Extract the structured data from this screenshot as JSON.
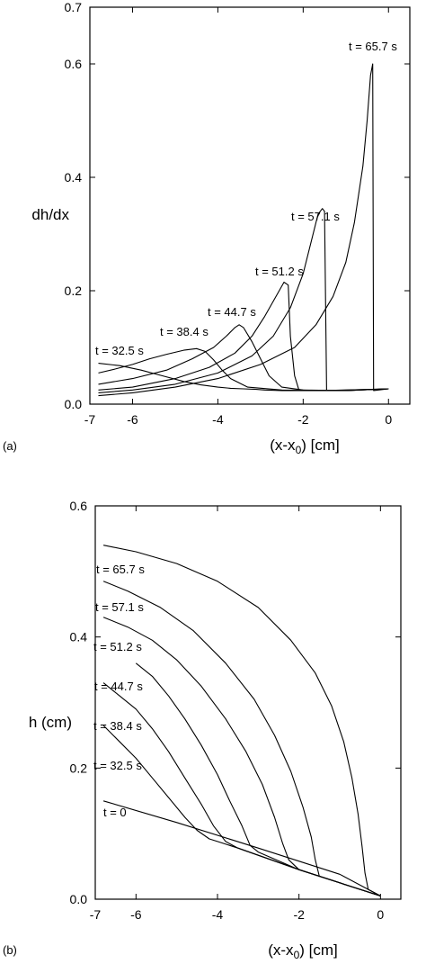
{
  "chart_data": [
    {
      "type": "line",
      "panel_label": "(a)",
      "xlabel": "(x-x",
      "xlabel_sub": "0",
      "xlabel_suffix": ") [cm]",
      "ylabel": "dh/dx",
      "xlim": [
        -7,
        0.5
      ],
      "ylim": [
        0,
        0.7
      ],
      "xticks": [
        -7,
        -6,
        -4,
        -2,
        0
      ],
      "xtick_labels": [
        "-7",
        "-6",
        "-4",
        "-2",
        "0"
      ],
      "yticks": [
        0.0,
        0.2,
        0.4,
        0.6,
        0.7
      ],
      "ytick_labels": [
        "0.0",
        "0.2",
        "0.4",
        "0.6",
        "0.7"
      ],
      "grid": false,
      "series": [
        {
          "label": "t = 32.5 s",
          "x": [
            -6.8,
            -6.3,
            -5.8,
            -5.3,
            -4.8,
            -4.4,
            -4.0,
            -3.7,
            -3.4,
            -3.1,
            -2.9,
            -2.5,
            -2.0,
            -1.0,
            0.0
          ],
          "y": [
            0.072,
            0.068,
            0.06,
            0.05,
            0.04,
            0.034,
            0.03,
            0.028,
            0.027,
            0.026,
            0.025,
            0.024,
            0.024,
            0.024,
            0.027
          ]
        },
        {
          "label": "t = 38.4 s",
          "x": [
            -6.8,
            -6.4,
            -6.0,
            -5.6,
            -5.2,
            -4.8,
            -4.5,
            -4.3,
            -4.1,
            -3.9,
            -3.7,
            -3.3,
            -2.5,
            -1.0,
            0.0
          ],
          "y": [
            0.055,
            0.062,
            0.07,
            0.08,
            0.088,
            0.095,
            0.098,
            0.093,
            0.078,
            0.06,
            0.045,
            0.03,
            0.025,
            0.024,
            0.027
          ]
        },
        {
          "label": "t = 44.7 s",
          "x": [
            -6.8,
            -6.0,
            -5.2,
            -4.6,
            -4.1,
            -3.8,
            -3.6,
            -3.5,
            -3.4,
            -3.2,
            -3.0,
            -2.8,
            -2.5,
            -2.0,
            -1.0,
            0.0
          ],
          "y": [
            0.035,
            0.045,
            0.06,
            0.08,
            0.1,
            0.12,
            0.135,
            0.14,
            0.135,
            0.11,
            0.08,
            0.05,
            0.03,
            0.025,
            0.024,
            0.027
          ]
        },
        {
          "label": "t = 51.2 s",
          "x": [
            -6.8,
            -6.0,
            -5.0,
            -4.2,
            -3.6,
            -3.2,
            -2.9,
            -2.6,
            -2.45,
            -2.35,
            -2.3,
            -2.2,
            -2.1,
            -1.5,
            0.0
          ],
          "y": [
            0.025,
            0.03,
            0.045,
            0.065,
            0.09,
            0.12,
            0.155,
            0.195,
            0.215,
            0.21,
            0.12,
            0.05,
            0.025,
            0.024,
            0.027
          ]
        },
        {
          "label": "t = 57.1 s",
          "x": [
            -6.8,
            -6.0,
            -5.0,
            -4.0,
            -3.2,
            -2.7,
            -2.3,
            -2.0,
            -1.8,
            -1.65,
            -1.55,
            -1.5,
            -1.45,
            0.0
          ],
          "y": [
            0.02,
            0.025,
            0.035,
            0.055,
            0.085,
            0.12,
            0.17,
            0.23,
            0.29,
            0.335,
            0.345,
            0.34,
            0.024,
            0.027
          ]
        },
        {
          "label": "t = 65.7 s",
          "x": [
            -6.8,
            -6.0,
            -5.0,
            -4.0,
            -3.0,
            -2.2,
            -1.7,
            -1.3,
            -1.0,
            -0.8,
            -0.6,
            -0.5,
            -0.42,
            -0.37,
            -0.35,
            0.0
          ],
          "y": [
            0.015,
            0.02,
            0.03,
            0.045,
            0.07,
            0.1,
            0.14,
            0.19,
            0.25,
            0.32,
            0.42,
            0.5,
            0.58,
            0.6,
            0.024,
            0.027
          ]
        }
      ]
    },
    {
      "type": "line",
      "panel_label": "(b)",
      "xlabel": "(x-x",
      "xlabel_sub": "0",
      "xlabel_suffix": ") [cm]",
      "ylabel": "h (cm)",
      "xlim": [
        -7,
        0.5
      ],
      "ylim": [
        0,
        0.6
      ],
      "xticks": [
        -7,
        -6,
        -4,
        -2,
        0
      ],
      "xtick_labels": [
        "-7",
        "-6",
        "-4",
        "-2",
        "0"
      ],
      "yticks": [
        0.0,
        0.2,
        0.4,
        0.6
      ],
      "ytick_labels": [
        "0.0",
        "0.2",
        "0.4",
        "0.6"
      ],
      "grid": false,
      "series": [
        {
          "label": "t = 0",
          "x": [
            -6.8,
            -5.0,
            -3.0,
            -1.0,
            0.0
          ],
          "y": [
            0.15,
            0.117,
            0.078,
            0.038,
            0.005
          ]
        },
        {
          "label": "t = 32.5 s",
          "x": [
            -6.8,
            -6.4,
            -6.0,
            -5.6,
            -5.2,
            -4.8,
            -4.5,
            -4.2,
            -4.0,
            -3.5,
            -2.0,
            0.0
          ],
          "y": [
            0.265,
            0.24,
            0.215,
            0.185,
            0.155,
            0.125,
            0.105,
            0.092,
            0.088,
            0.078,
            0.045,
            0.005
          ]
        },
        {
          "label": "t = 38.4 s",
          "x": [
            -6.8,
            -6.4,
            -6.0,
            -5.6,
            -5.2,
            -4.8,
            -4.4,
            -4.1,
            -3.8,
            -3.5,
            -2.0,
            0.0
          ],
          "y": [
            0.33,
            0.31,
            0.29,
            0.26,
            0.225,
            0.185,
            0.145,
            0.112,
            0.088,
            0.078,
            0.045,
            0.005
          ]
        },
        {
          "label": "t = 44.7 s",
          "x": [
            -6.0,
            -5.6,
            -5.2,
            -4.8,
            -4.4,
            -4.0,
            -3.7,
            -3.4,
            -3.2,
            -3.0,
            -2.0,
            0.0
          ],
          "y": [
            0.36,
            0.34,
            0.31,
            0.275,
            0.235,
            0.19,
            0.15,
            0.112,
            0.082,
            0.072,
            0.045,
            0.005
          ]
        },
        {
          "label": "t = 51.2 s",
          "x": [
            -6.8,
            -6.2,
            -5.6,
            -5.0,
            -4.4,
            -3.8,
            -3.3,
            -2.9,
            -2.6,
            -2.4,
            -2.25,
            -2.0,
            0.0
          ],
          "y": [
            0.43,
            0.415,
            0.395,
            0.365,
            0.325,
            0.275,
            0.225,
            0.175,
            0.125,
            0.085,
            0.06,
            0.045,
            0.005
          ]
        },
        {
          "label": "t = 57.1 s",
          "x": [
            -6.8,
            -6.2,
            -5.4,
            -4.6,
            -3.8,
            -3.1,
            -2.6,
            -2.2,
            -1.9,
            -1.7,
            -1.6,
            -1.5,
            0.0
          ],
          "y": [
            0.485,
            0.47,
            0.445,
            0.41,
            0.36,
            0.305,
            0.25,
            0.195,
            0.14,
            0.095,
            0.06,
            0.035,
            0.005
          ]
        },
        {
          "label": "t = 65.7 s",
          "x": [
            -6.8,
            -6.0,
            -5.0,
            -4.0,
            -3.0,
            -2.2,
            -1.6,
            -1.2,
            -0.9,
            -0.7,
            -0.55,
            -0.45,
            -0.38,
            -0.3,
            0.0
          ],
          "y": [
            0.54,
            0.53,
            0.512,
            0.485,
            0.445,
            0.395,
            0.345,
            0.295,
            0.24,
            0.185,
            0.13,
            0.08,
            0.04,
            0.015,
            0.005
          ]
        }
      ]
    }
  ]
}
